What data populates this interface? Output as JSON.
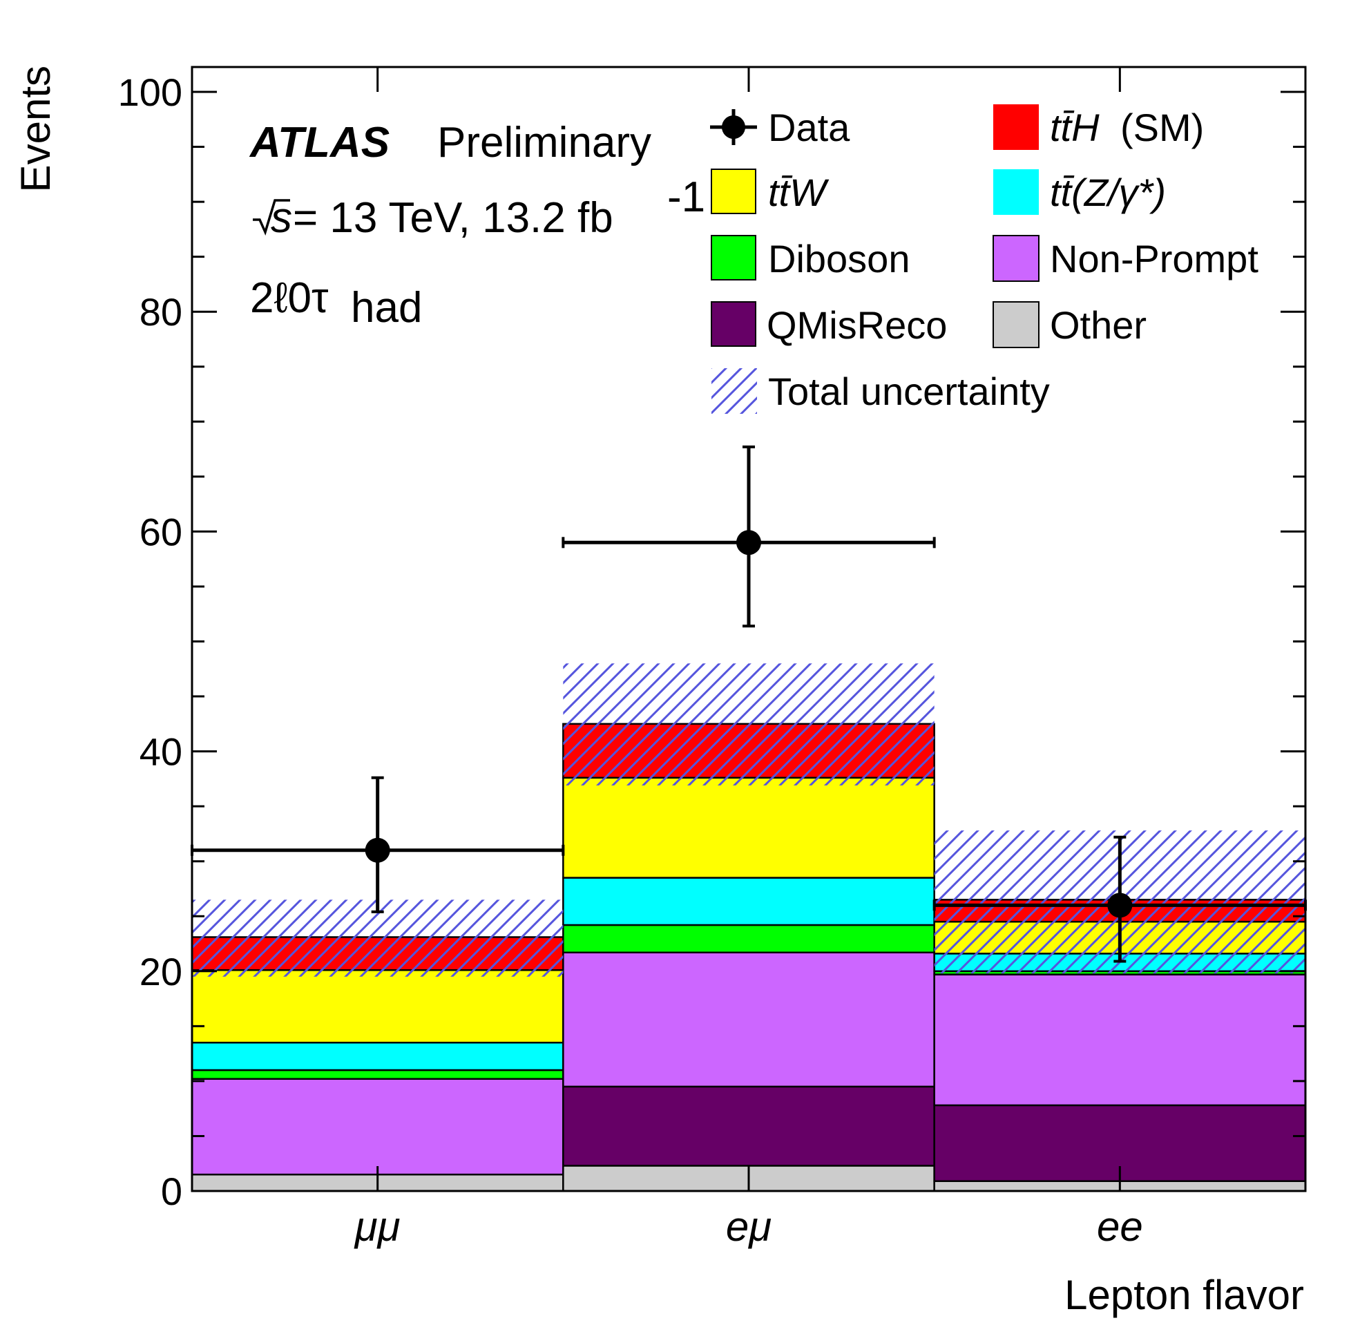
{
  "chart_data": {
    "type": "bar",
    "stacked": true,
    "categories": [
      "μμ",
      "eμ",
      "ee"
    ],
    "xlabel": "Lepton flavor",
    "ylabel": "Events",
    "ylim": [
      0,
      100
    ],
    "yticks": [
      0,
      20,
      40,
      60,
      80,
      100
    ],
    "series": [
      {
        "name": "Other",
        "color": "#cccccc",
        "values": [
          1.5,
          2.3,
          0.9
        ]
      },
      {
        "name": "QMisReco",
        "color": "#660066",
        "values": [
          0.0,
          7.2,
          6.9
        ]
      },
      {
        "name": "Non-Prompt",
        "color": "#cc66ff",
        "values": [
          8.7,
          12.2,
          11.9
        ]
      },
      {
        "name": "Diboson",
        "color": "#00ff00",
        "values": [
          0.8,
          2.5,
          0.3
        ]
      },
      {
        "name": "tt̄(Z/γ*)",
        "color": "#00ffff",
        "values": [
          2.5,
          4.3,
          1.6
        ]
      },
      {
        "name": "tt̄W",
        "color": "#ffff00",
        "values": [
          6.6,
          9.1,
          2.9
        ]
      },
      {
        "name": "tt̄H (SM)",
        "color": "#ff0000",
        "values": [
          3.0,
          4.9,
          2.0
        ]
      }
    ],
    "data": {
      "name": "Data",
      "values": [
        31,
        59,
        26
      ],
      "err_low": [
        5.6,
        7.6,
        5.1
      ],
      "err_high": [
        6.6,
        8.7,
        6.2
      ]
    },
    "uncertainty": {
      "name": "Total uncertainty",
      "low": [
        19.5,
        36.9,
        19.8
      ],
      "high": [
        26.5,
        48.0,
        32.8
      ]
    },
    "legend_placement": "top-right"
  },
  "annotations": {
    "experiment": "ATLAS",
    "status": "Preliminary",
    "energy_prefix": "s",
    "energy_text": " = 13 TeV, 13.2 fb",
    "lumi_exponent": "-1",
    "channel_main": "2ℓ0τ",
    "channel_sub": "had"
  },
  "legend": {
    "data": "Data",
    "tth_label": "tt̄H",
    "tth_suffix": " (SM)",
    "ttw_label": "tt̄W",
    "ttz_label": "tt̄(Z/γ*)",
    "diboson": "Diboson",
    "nonprompt": "Non-Prompt",
    "qmisreco": "QMisReco",
    "other": "Other",
    "uncertainty": "Total uncertainty"
  },
  "colors": {
    "hatch": "#5555dd",
    "frame": "#000000"
  }
}
